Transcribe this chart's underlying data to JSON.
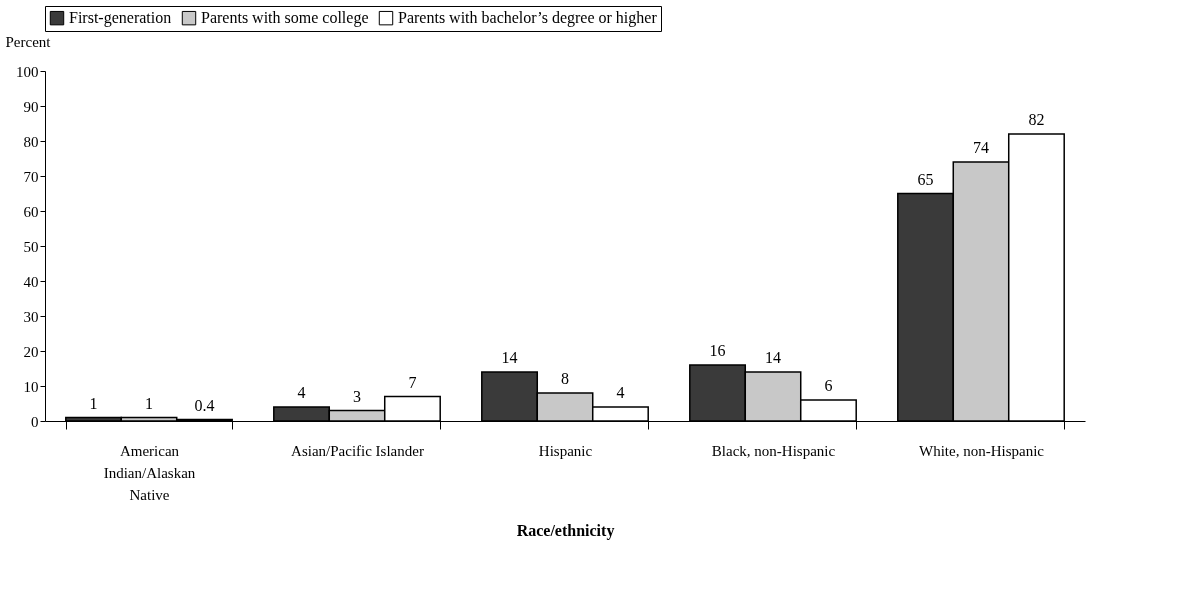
{
  "chart_data": {
    "type": "bar",
    "xlabel": "Race/ethnicity",
    "ylabel": "Percent",
    "categories": [
      "American Indian/Alaskan Native",
      "Asian/Pacific Islander",
      "Hispanic",
      "Black, non-Hispanic",
      "White, non-Hispanic"
    ],
    "series": [
      {
        "name": "First-generation",
        "color": "#3a3a3a",
        "values": [
          1,
          4,
          14,
          16,
          65
        ]
      },
      {
        "name": "Parents with some college",
        "color": "#c8c8c8",
        "values": [
          1,
          3,
          8,
          14,
          74
        ]
      },
      {
        "name": "Parents with bachelor’s degree or higher",
        "color": "#ffffff",
        "values": [
          0.4,
          7,
          4,
          6,
          82
        ]
      }
    ],
    "ylim": [
      0,
      100
    ],
    "yticks": [
      0,
      10,
      20,
      30,
      40,
      50,
      60,
      70,
      80,
      90,
      100
    ],
    "grid": false,
    "legend": "top",
    "data_labels": true
  }
}
